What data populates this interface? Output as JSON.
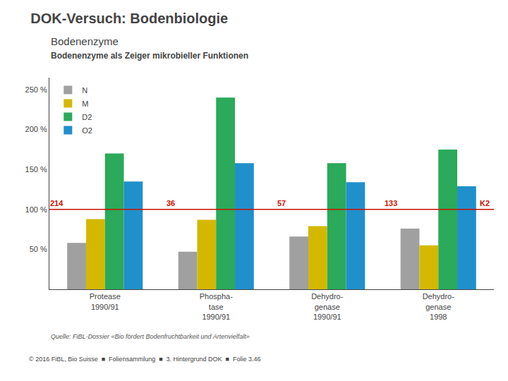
{
  "chart_data": {
    "type": "bar",
    "title": "DOK-Versuch: Bodenbiologie",
    "subtitle": [
      "Bodenenzyme",
      "Bodenenzyme als Zeiger mikrobieller Funktionen"
    ],
    "source": "Quelle: FiBL-Dossier «Bio fördert Bodenfruchtbarkeit und Artenvielfalt»",
    "footer": "© 2016 FiBL, Bio Suisse  ■  Foliensammlung  ■  3. Hintergrund DOK  ■  Folie 3.46",
    "categories": [
      "Protease\n1990/91",
      "Phospha-\ntase\n1990/91",
      "Dehydro-\ngenase\n1990/91",
      "Dehydro-\ngenase\n1998"
    ],
    "series": [
      {
        "name": "N",
        "color": "#a0a0a0",
        "values": [
          58,
          47,
          66,
          76
        ]
      },
      {
        "name": "M",
        "color": "#d4b800",
        "values": [
          88,
          87,
          79,
          55
        ]
      },
      {
        "name": "D2",
        "color": "#2aaa5a",
        "values": [
          170,
          240,
          158,
          175
        ]
      },
      {
        "name": "O2",
        "color": "#2090cc",
        "values": [
          135,
          158,
          134,
          129
        ]
      }
    ],
    "ylim": [
      0,
      265
    ],
    "yticks": [
      {
        "value": 50,
        "label": "50 %"
      },
      {
        "value": 100,
        "label": "100 %"
      },
      {
        "value": 150,
        "label": "150 %"
      },
      {
        "value": 200,
        "label": "200 %"
      },
      {
        "value": 250,
        "label": "250 %"
      }
    ],
    "reference_line": {
      "value": 100,
      "color": "#cc1100"
    },
    "annotations": [
      {
        "text": "214",
        "color": "#cc1100"
      },
      {
        "text": "36",
        "color": "#cc1100"
      },
      {
        "text": "57",
        "color": "#cc1100"
      },
      {
        "text": "133",
        "color": "#cc1100"
      },
      {
        "text": "K2",
        "color": "#cc1100"
      }
    ],
    "grid": false,
    "legend": "upper left"
  }
}
